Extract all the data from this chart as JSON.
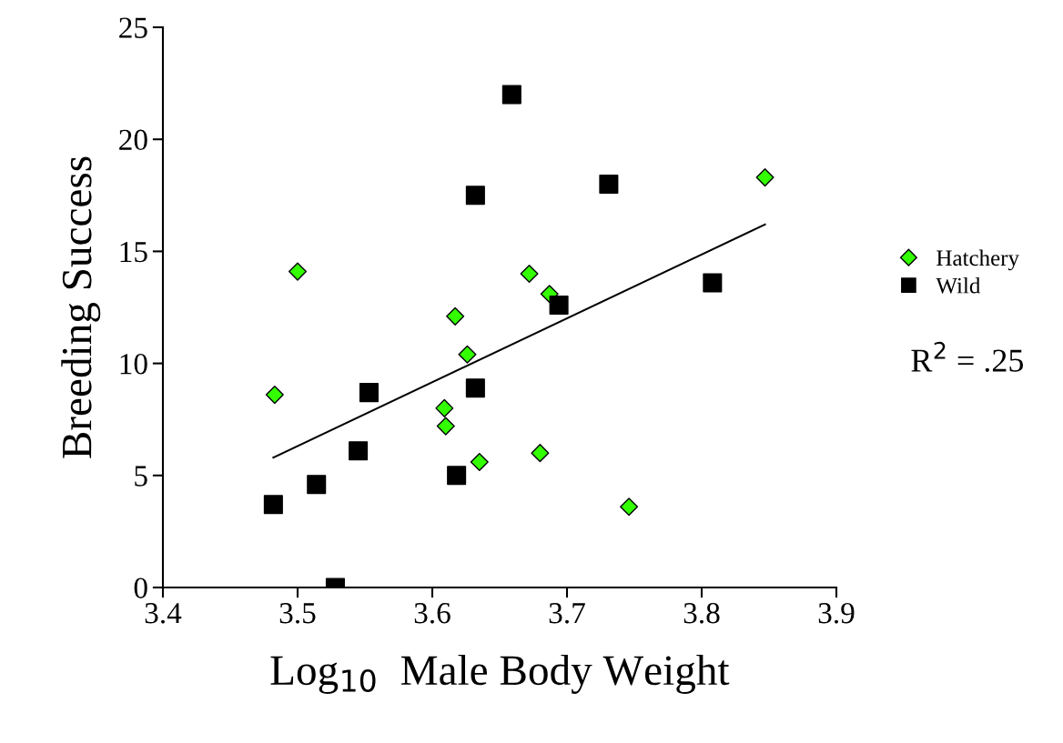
{
  "chart_data": {
    "type": "scatter",
    "xlabel": "Log$_{10}$  Male Body Weight",
    "ylabel": "Breeding Success",
    "xlim": [
      3.4,
      3.9
    ],
    "xticks": [
      {
        "value": 3.4,
        "label": "3.4"
      },
      {
        "value": 3.5,
        "label": "3.5"
      },
      {
        "value": 3.6,
        "label": "3.6"
      },
      {
        "value": 3.7,
        "label": "3.7"
      },
      {
        "value": 3.8,
        "label": "3.8"
      },
      {
        "value": 3.9,
        "label": "3.9"
      }
    ],
    "ylim": [
      0,
      25
    ],
    "yticks": [
      0,
      5,
      10,
      15,
      20,
      25
    ],
    "grid": false,
    "legend": "right",
    "annotations": [
      "R$^{2}$ = .25"
    ],
    "series": [
      {
        "name": "Hatchery",
        "color": "#33ff00",
        "marker": "diamond",
        "x": [
          3.483,
          3.5,
          3.541,
          3.609,
          3.61,
          3.617,
          3.626,
          3.635,
          3.672,
          3.68,
          3.687,
          3.746,
          3.847
        ],
        "values": [
          8.6,
          14.1,
          null,
          8.0,
          7.2,
          12.1,
          10.4,
          5.6,
          14.0,
          6.0,
          13.1,
          3.6,
          18.3
        ]
      },
      {
        "name": "Wild",
        "color": "#000000",
        "marker": "square",
        "x": [
          3.482,
          3.514,
          3.528,
          3.545,
          3.553,
          3.618,
          3.632,
          3.632,
          3.659,
          3.694,
          3.731,
          3.808
        ],
        "values": [
          3.7,
          4.6,
          0,
          6.1,
          8.7,
          5.0,
          17.5,
          8.9,
          22.0,
          12.6,
          18.0,
          13.6
        ]
      },
      {
        "type": "line",
        "color": "#000000",
        "x": [
          3.482,
          3.847
        ],
        "values": [
          5.8,
          16.2
        ]
      }
    ]
  }
}
